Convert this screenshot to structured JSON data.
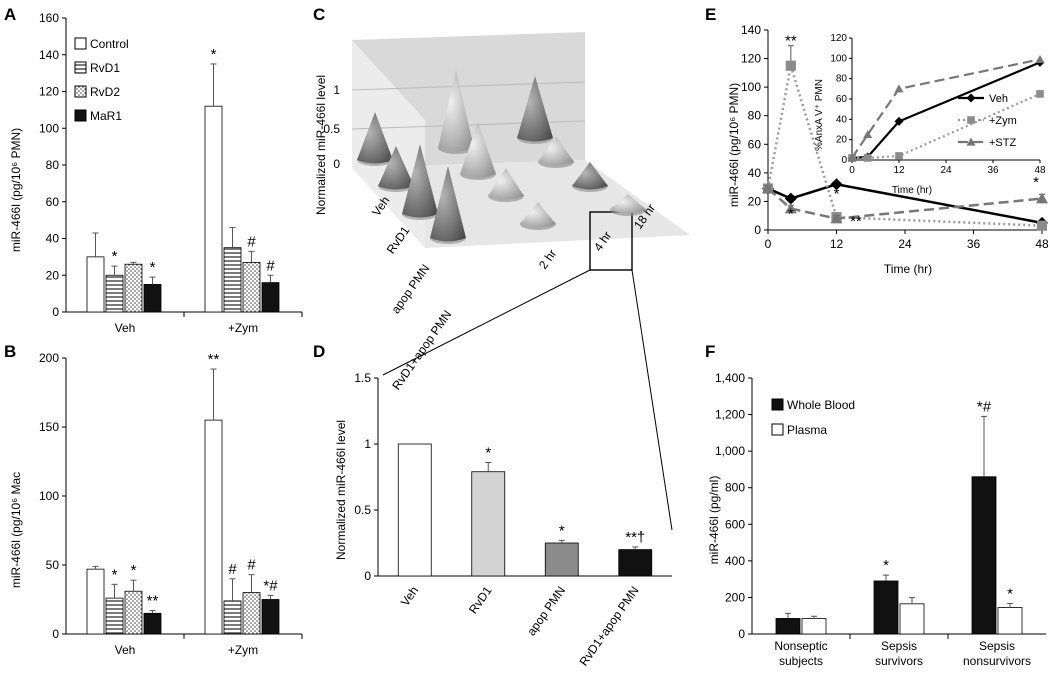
{
  "colors": {
    "white": "#ffffff",
    "light": "#d3d3d3",
    "mid": "#8c8c8c",
    "dark": "#111111",
    "line_gray": "#999999",
    "error": "#555555"
  },
  "chart_data": [
    {
      "panel": "A",
      "type": "bar",
      "ylabel": "miR-466l (pg/10⁶ PMN)",
      "ylim": [
        0,
        160
      ],
      "yticks": [
        "0",
        "20",
        "40",
        "60",
        "80",
        "100",
        "120",
        "140",
        "160"
      ],
      "categories": [
        "Veh",
        "+Zym"
      ],
      "legend": [
        "Control",
        "RvD1",
        "RvD2",
        "MaR1"
      ],
      "series": [
        {
          "name": "Control",
          "fill": "white",
          "values": [
            30,
            112
          ],
          "errors": [
            13,
            23
          ],
          "marks": [
            "",
            "*"
          ]
        },
        {
          "name": "RvD1",
          "fill": "hstripe",
          "values": [
            20,
            35
          ],
          "errors": [
            5,
            11
          ],
          "marks": [
            "*",
            ""
          ]
        },
        {
          "name": "RvD2",
          "fill": "dots",
          "values": [
            26,
            27
          ],
          "errors": [
            1,
            6
          ],
          "marks": [
            "",
            "#"
          ]
        },
        {
          "name": "MaR1",
          "fill": "black",
          "values": [
            15,
            16
          ],
          "errors": [
            4,
            4
          ],
          "marks": [
            "*",
            "#"
          ]
        }
      ]
    },
    {
      "panel": "B",
      "type": "bar",
      "ylabel": "miR-466l (pg/10⁶ Mac",
      "ylim": [
        0,
        200
      ],
      "yticks": [
        "0",
        "50",
        "100",
        "150",
        "200"
      ],
      "categories": [
        "Veh",
        "+Zym"
      ],
      "series": [
        {
          "name": "Control",
          "fill": "white",
          "values": [
            47,
            155
          ],
          "errors": [
            2,
            37
          ],
          "marks": [
            "",
            "**"
          ]
        },
        {
          "name": "RvD1",
          "fill": "hstripe",
          "values": [
            26,
            24
          ],
          "errors": [
            10,
            16
          ],
          "marks": [
            "*",
            "#"
          ]
        },
        {
          "name": "RvD2",
          "fill": "dots",
          "values": [
            31,
            30
          ],
          "errors": [
            8,
            13
          ],
          "marks": [
            "*",
            "#"
          ]
        },
        {
          "name": "MaR1",
          "fill": "black",
          "values": [
            15,
            25
          ],
          "errors": [
            2,
            3
          ],
          "marks": [
            "**",
            "*#"
          ]
        }
      ]
    },
    {
      "panel": "C",
      "type": "3d-cone",
      "zlabel": "Normalized miR-466l level",
      "zticks": [
        "0",
        "0.5",
        "1"
      ],
      "rows": [
        "Veh",
        "RvD1",
        "apop PMN",
        "RvD1+apop PMN"
      ],
      "cols": [
        "2 hr",
        "4 hr",
        "18 hr"
      ],
      "highlight": "4 hr"
    },
    {
      "panel": "D",
      "type": "bar",
      "ylabel": "Normalized miR-466l level",
      "ylim": [
        0,
        1.5
      ],
      "yticks": [
        "0",
        "0.5",
        "1",
        "1.5"
      ],
      "categories": [
        "Veh",
        "RvD1",
        "apop PMN",
        "RvD1+apop PMN"
      ],
      "values": [
        1.0,
        0.79,
        0.25,
        0.2
      ],
      "errors": [
        0,
        0.07,
        0.02,
        0.02
      ],
      "fills": [
        "white",
        "light",
        "mid",
        "dark"
      ],
      "marks": [
        "",
        "*",
        "*",
        "**†"
      ]
    },
    {
      "panel": "E",
      "type": "line",
      "xlabel": "Time (hr)",
      "ylabel": "miR-466l (pg/10⁶ PMN)",
      "xlim": [
        0,
        48
      ],
      "ylim": [
        0,
        140
      ],
      "xticks": [
        "0",
        "12",
        "24",
        "36",
        "48"
      ],
      "yticks": [
        "0",
        "20",
        "40",
        "60",
        "80",
        "100",
        "120",
        "140"
      ],
      "series": [
        {
          "name": "Veh",
          "x": [
            0,
            4,
            12,
            48
          ],
          "y": [
            29,
            22,
            32,
            5
          ],
          "errors": [
            2,
            2,
            1,
            1
          ]
        },
        {
          "name": "+Zym",
          "x": [
            0,
            4,
            12,
            48
          ],
          "y": [
            29,
            115,
            9,
            3
          ],
          "errors": [
            3,
            14,
            3,
            1
          ]
        },
        {
          "name": "+STZ",
          "x": [
            0,
            4,
            12,
            48
          ],
          "y": [
            29,
            15,
            8,
            22
          ],
          "errors": [
            2,
            2,
            2,
            3
          ]
        }
      ],
      "marks": [
        "**",
        "*",
        "*",
        "**",
        "*"
      ],
      "inset": {
        "xlabel": "Time (hr)",
        "ylabel": "%AnxA V⁺ PMN",
        "xlim": [
          0,
          48
        ],
        "ylim": [
          0,
          120
        ],
        "xticks": [
          "0",
          "12",
          "24",
          "36",
          "48"
        ],
        "yticks": [
          "0",
          "20",
          "40",
          "60",
          "80",
          "100",
          "120"
        ],
        "legend": [
          "Veh",
          "+Zym",
          "+STZ"
        ],
        "series": [
          {
            "name": "Veh",
            "x": [
              0,
              4,
              12,
              48
            ],
            "y": [
              2,
              3,
              38,
              96
            ]
          },
          {
            "name": "+Zym",
            "x": [
              0,
              4,
              12,
              48
            ],
            "y": [
              2,
              2,
              4,
              65
            ]
          },
          {
            "name": "+STZ",
            "x": [
              0,
              4,
              12,
              48
            ],
            "y": [
              2,
              25,
              70,
              99
            ]
          }
        ]
      }
    },
    {
      "panel": "F",
      "type": "bar",
      "ylabel": "miR-466l (pg/ml)",
      "ylim": [
        0,
        1400
      ],
      "yticks": [
        "0",
        "200",
        "400",
        "600",
        "800",
        "1,000",
        "1,200",
        "1,400"
      ],
      "categories": [
        [
          "Nonseptic",
          "subjects"
        ],
        [
          "Sepsis",
          "survivors"
        ],
        [
          "Sepsis",
          "nonsurvivors"
        ]
      ],
      "legend": [
        "Whole Blood",
        "Plasma"
      ],
      "series": [
        {
          "name": "Whole Blood",
          "fill": "black",
          "values": [
            85,
            290,
            860
          ],
          "errors": [
            28,
            32,
            330
          ],
          "marks": [
            "",
            "*",
            "*#"
          ]
        },
        {
          "name": "Plasma",
          "fill": "white",
          "values": [
            85,
            165,
            145
          ],
          "errors": [
            12,
            35,
            22
          ],
          "marks": [
            "",
            "",
            "*"
          ]
        }
      ]
    }
  ]
}
